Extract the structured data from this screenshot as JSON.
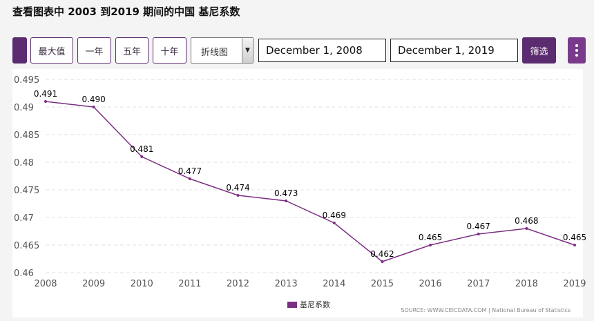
{
  "header": {
    "title": "查看图表中 2003 到2019 期间的中国 基尼系数"
  },
  "toolbar": {
    "buttons": [
      "最大值",
      "一年",
      "五年",
      "十年"
    ],
    "chart_type": "折线图",
    "start_date": "December 1, 2008",
    "end_date": "December 1, 2019",
    "filter_label": "筛选"
  },
  "colors": {
    "series": "#7b2f82",
    "accent": "#5b2c6f"
  },
  "source": "SOURCE: WWW.CEICDATA.COM | National Bureau of Statistics",
  "chart_data": {
    "type": "line",
    "title": "",
    "xlabel": "",
    "ylabel": "",
    "x": [
      "2008",
      "2009",
      "2010",
      "2011",
      "2012",
      "2013",
      "2014",
      "2015",
      "2016",
      "2017",
      "2018",
      "2019"
    ],
    "series": [
      {
        "name": "基尼系数",
        "values": [
          0.491,
          0.49,
          0.481,
          0.477,
          0.474,
          0.473,
          0.469,
          0.462,
          0.465,
          0.467,
          0.468,
          0.465
        ]
      }
    ],
    "data_labels": [
      "0.491",
      "0.490",
      "0.481",
      "0.477",
      "0.474",
      "0.473",
      "0.469",
      "0.462",
      "0.465",
      "0.467",
      "0.468",
      "0.465"
    ],
    "yticks": [
      "0.495",
      "0.49",
      "0.485",
      "0.48",
      "0.475",
      "0.47",
      "0.465",
      "0.46"
    ],
    "ylim": [
      0.46,
      0.495
    ],
    "grid": true,
    "legend": "bottom"
  }
}
